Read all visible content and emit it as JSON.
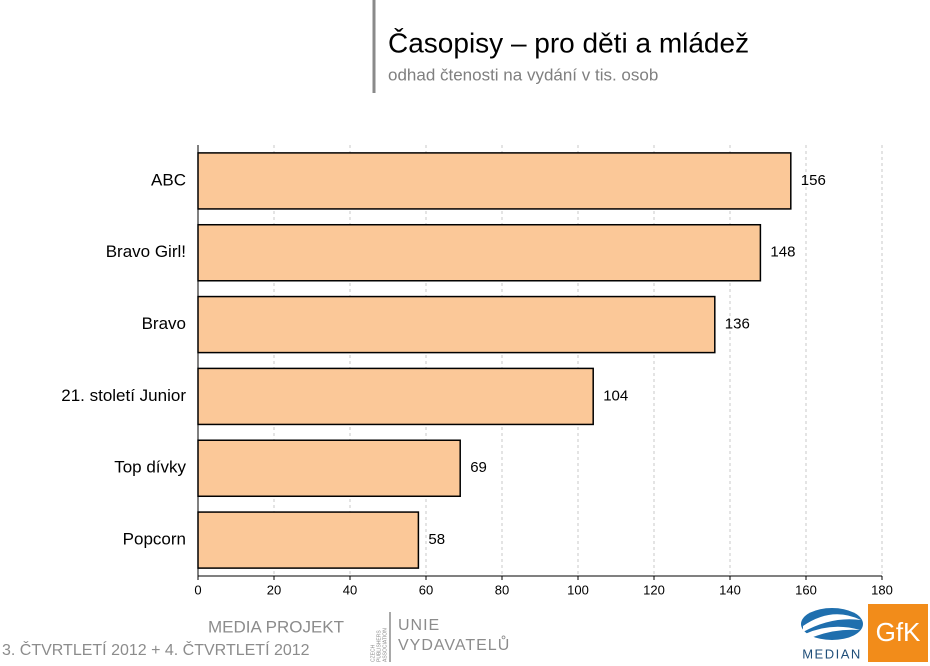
{
  "chart_data": {
    "type": "bar",
    "orientation": "horizontal",
    "title": "Časopisy – pro děti a mládež",
    "subtitle": "odhad čtenosti na vydání v tis. osob",
    "categories": [
      "ABC",
      "Bravo Girl!",
      "Bravo",
      "21. století Junior",
      "Top dívky",
      "Popcorn"
    ],
    "values": [
      156,
      148,
      136,
      104,
      69,
      58
    ],
    "color": "#fbc898",
    "xlim": [
      0,
      180
    ],
    "xticks": [
      0,
      20,
      40,
      60,
      80,
      100,
      120,
      140,
      160,
      180
    ],
    "grid": true
  },
  "footer": {
    "project": "MEDIA PROJEKT",
    "period": "3. ČTVRTLETÍ 2012 + 4. ČTVRTLETÍ 2012",
    "association": [
      "CZECH",
      "PUBLISHERS",
      "ASSOCIATION"
    ],
    "union": [
      "UNIE",
      "VYDAVATELŮ"
    ],
    "median": "MEDIAN",
    "gfk": "GfK"
  }
}
